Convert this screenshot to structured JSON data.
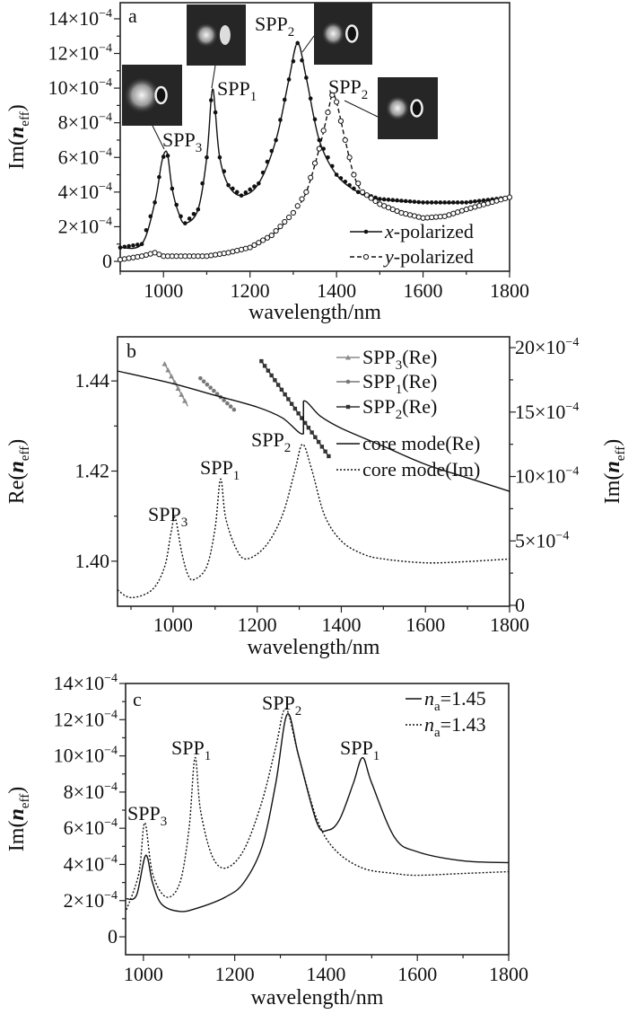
{
  "chart_data": [
    {
      "panel_label": "a",
      "type": "line",
      "xlabel": "wavelength/nm",
      "ylabel": {
        "pre": "Im(",
        "var": "n",
        "sub": "eff",
        "post": ")"
      },
      "xlim": [
        900,
        1800
      ],
      "ylim": [
        -0.57,
        14.93
      ],
      "y_multiplier": 0.0001,
      "x_ticks": [
        1000,
        1200,
        1400,
        1600,
        1800
      ],
      "x_tick_labels": [
        "1000",
        "1200",
        "1400",
        "1600",
        "1800"
      ],
      "y_ticks": [
        0,
        2,
        4,
        6,
        8,
        10,
        12,
        14
      ],
      "y_tick_labels": [
        {
          "base": "0"
        },
        {
          "base": "2×10",
          "exp": "−4"
        },
        {
          "base": "4×10",
          "exp": "−4"
        },
        {
          "base": "6×10",
          "exp": "−4"
        },
        {
          "base": "8×10",
          "exp": "−4"
        },
        {
          "base": "10×10",
          "exp": "−4"
        },
        {
          "base": "12×10",
          "exp": "−4"
        },
        {
          "base": "14×10",
          "exp": "−4"
        }
      ],
      "series": [
        {
          "label": {
            "it": "x",
            "txt": "-polarized"
          },
          "line": "solid",
          "marker": "filled-circle",
          "color": "#111111",
          "x": [
            900,
            950,
            980,
            995,
            1003,
            1010,
            1020,
            1035,
            1050,
            1080,
            1100,
            1110,
            1115,
            1120,
            1130,
            1150,
            1180,
            1220,
            1260,
            1290,
            1310,
            1330,
            1360,
            1400,
            1450,
            1500,
            1600,
            1700,
            1800
          ],
          "y": [
            0.8,
            1.0,
            3.4,
            5.6,
            6.3,
            6.1,
            4.2,
            2.8,
            2.2,
            3.0,
            6.0,
            9.3,
            9.9,
            8.6,
            6.0,
            4.4,
            3.8,
            4.5,
            7.0,
            10.5,
            12.6,
            10.6,
            7.0,
            5.0,
            4.0,
            3.6,
            3.4,
            3.4,
            3.7
          ]
        },
        {
          "label": {
            "it": "y",
            "txt": "-polarized"
          },
          "line": "dashed",
          "marker": "open-circle",
          "color": "#111111",
          "x": [
            900,
            950,
            980,
            1000,
            1050,
            1100,
            1150,
            1200,
            1250,
            1300,
            1330,
            1360,
            1380,
            1390,
            1400,
            1420,
            1440,
            1460,
            1500,
            1550,
            1600,
            1650,
            1700,
            1800
          ],
          "y": [
            0.1,
            0.3,
            0.5,
            0.3,
            0.3,
            0.3,
            0.5,
            0.8,
            1.5,
            2.8,
            4.0,
            6.5,
            8.6,
            9.6,
            9.2,
            7.0,
            5.0,
            4.0,
            3.3,
            2.8,
            2.5,
            2.6,
            3.0,
            3.7
          ]
        }
      ],
      "annotations": [
        {
          "text": "SPP",
          "sub": "3",
          "at": [
            1003,
            6.3
          ]
        },
        {
          "text": "SPP",
          "sub": "1",
          "at": [
            1115,
            9.9
          ]
        },
        {
          "text": "SPP",
          "sub": "2",
          "at": [
            1310,
            12.6
          ]
        },
        {
          "text": "SPP",
          "sub": "2",
          "at": [
            1390,
            9.6
          ]
        }
      ],
      "insets": [
        {
          "mode": "SPP3"
        },
        {
          "mode": "SPP1"
        },
        {
          "mode": "SPP2-x"
        },
        {
          "mode": "SPP2-y"
        }
      ],
      "legend_position": "bottom-right"
    },
    {
      "panel_label": "b",
      "type": "line",
      "xlabel": "wavelength/nm",
      "ylabel": {
        "pre": "Re(",
        "var": "n",
        "sub": "eff",
        "post": ")"
      },
      "ylabel_right": {
        "pre": "Im(",
        "var": "n",
        "sub": "eff",
        "post": ")"
      },
      "xlim": [
        868,
        1800
      ],
      "ylim": [
        1.39,
        1.4498
      ],
      "ylim_right": [
        -0.07,
        20.84
      ],
      "y_right_multiplier": 0.0001,
      "x_ticks": [
        1000,
        1200,
        1400,
        1600,
        1800
      ],
      "x_tick_labels": [
        "1000",
        "1200",
        "1400",
        "1600",
        "1800"
      ],
      "y_ticks": [
        1.4,
        1.42,
        1.44
      ],
      "y_tick_labels": [
        {
          "base": "1.40"
        },
        {
          "base": "1.42"
        },
        {
          "base": "1.44"
        }
      ],
      "y_ticks_right": [
        0,
        5,
        10,
        15,
        20
      ],
      "y_tick_labels_right": [
        {
          "base": "0"
        },
        {
          "base": "5×10",
          "exp": "−4"
        },
        {
          "base": "10×10",
          "exp": "−4"
        },
        {
          "base": "15×10",
          "exp": "−4"
        },
        {
          "base": "20×10",
          "exp": "−4"
        }
      ],
      "series": [
        {
          "label": {
            "txt": "SPP",
            "sub": "3",
            "post": "(Re)"
          },
          "axis": "left",
          "line": "solid",
          "marker": "triangle",
          "color": "#8a8a8a",
          "x": [
            980,
            1035
          ],
          "y": [
            1.4438,
            1.4344
          ]
        },
        {
          "label": {
            "txt": "SPP",
            "sub": "1",
            "post": "(Re)"
          },
          "axis": "left",
          "line": "none",
          "marker": "filled-circle",
          "color": "#777777",
          "x": [
            1065,
            1150
          ],
          "y": [
            1.4406,
            1.4332
          ]
        },
        {
          "label": {
            "txt": "SPP",
            "sub": "2",
            "post": "(Re)"
          },
          "axis": "left",
          "line": "solid",
          "marker": "square",
          "color": "#333333",
          "x": [
            1210,
            1370
          ],
          "y": [
            1.4444,
            1.4233
          ]
        },
        {
          "label": {
            "txt": "core mode(Re)"
          },
          "axis": "left",
          "line": "solid",
          "marker": "none",
          "color": "#111111",
          "x": [
            868,
            1000,
            1100,
            1200,
            1260,
            1310,
            1310,
            1350,
            1400,
            1500,
            1600,
            1700,
            1800
          ],
          "y": [
            1.4422,
            1.4394,
            1.4368,
            1.4342,
            1.4318,
            1.4283,
            1.4355,
            1.4322,
            1.4295,
            1.4255,
            1.4215,
            1.4185,
            1.4155
          ]
        },
        {
          "label": {
            "txt": "core mode(Im)"
          },
          "axis": "right",
          "line": "dotted",
          "marker": "none",
          "color": "#111111",
          "x": [
            868,
            900,
            950,
            980,
            995,
            1005,
            1020,
            1035,
            1050,
            1080,
            1100,
            1113,
            1125,
            1150,
            1175,
            1220,
            1260,
            1290,
            1308,
            1330,
            1360,
            1400,
            1450,
            1500,
            1600,
            1700,
            1800
          ],
          "y": [
            1.2,
            0.6,
            1.2,
            3.0,
            5.6,
            6.8,
            4.2,
            2.4,
            2.0,
            3.0,
            6.0,
            9.8,
            6.8,
            4.4,
            3.6,
            4.6,
            7.0,
            10.5,
            12.5,
            10.5,
            7.0,
            5.0,
            4.0,
            3.6,
            3.3,
            3.4,
            3.6
          ]
        }
      ],
      "annotations": [
        {
          "text": "SPP",
          "sub": "3",
          "at": [
            1005,
            6.8
          ]
        },
        {
          "text": "SPP",
          "sub": "1",
          "at": [
            1113,
            9.8
          ]
        },
        {
          "text": "SPP",
          "sub": "2",
          "at": [
            1308,
            12.5
          ]
        }
      ],
      "legend_position": "top-right"
    },
    {
      "panel_label": "c",
      "type": "line",
      "xlabel": "wavelength/nm",
      "ylabel": {
        "pre": "Im(",
        "var": "n",
        "sub": "eff",
        "post": ")"
      },
      "xlim": [
        961,
        1800
      ],
      "ylim": [
        -0.99,
        14
      ],
      "y_multiplier": 0.0001,
      "x_ticks": [
        1000,
        1200,
        1400,
        1600,
        1800
      ],
      "x_tick_labels": [
        "1000",
        "1200",
        "1400",
        "1600",
        "1800"
      ],
      "y_ticks": [
        0,
        2,
        4,
        6,
        8,
        10,
        12,
        14
      ],
      "y_tick_labels": [
        {
          "base": "0"
        },
        {
          "base": "2×10",
          "exp": "−4"
        },
        {
          "base": "4×10",
          "exp": "−4"
        },
        {
          "base": "6×10",
          "exp": "−4"
        },
        {
          "base": "8×10",
          "exp": "−4"
        },
        {
          "base": "10×10",
          "exp": "−4"
        },
        {
          "base": "12×10",
          "exp": "−4"
        },
        {
          "base": "14×10",
          "exp": "−4"
        }
      ],
      "series": [
        {
          "label": {
            "it": "n",
            "sub": "a",
            "txt": "=1.45"
          },
          "line": "solid",
          "marker": "none",
          "color": "#111111",
          "x": [
            963,
            985,
            1005,
            1020,
            1040,
            1080,
            1120,
            1180,
            1220,
            1260,
            1290,
            1315,
            1340,
            1380,
            1405,
            1430,
            1460,
            1480,
            1500,
            1550,
            1600,
            1700,
            1800
          ],
          "y": [
            2.1,
            2.3,
            4.5,
            3.0,
            1.8,
            1.4,
            1.6,
            2.2,
            3.0,
            5.0,
            8.5,
            12.3,
            10.0,
            6.3,
            5.9,
            6.5,
            8.5,
            9.9,
            8.5,
            5.5,
            4.7,
            4.2,
            4.1
          ]
        },
        {
          "label": {
            "it": "n",
            "sub": "a",
            "txt": "=1.43"
          },
          "line": "dotted",
          "marker": "none",
          "color": "#111111",
          "x": [
            963,
            990,
            1003,
            1020,
            1050,
            1080,
            1100,
            1113,
            1125,
            1150,
            1180,
            1220,
            1260,
            1290,
            1312,
            1340,
            1380,
            1420,
            1480,
            1550,
            1600,
            1700,
            1800
          ],
          "y": [
            1.5,
            3.5,
            6.3,
            3.5,
            2.2,
            3.0,
            6.0,
            9.9,
            7.0,
            4.5,
            3.8,
            4.8,
            7.5,
            10.5,
            12.6,
            10.0,
            6.5,
            4.8,
            3.8,
            3.5,
            3.4,
            3.5,
            3.6
          ]
        }
      ],
      "annotations": [
        {
          "text": "SPP",
          "sub": "3",
          "at": [
            1003,
            6.3
          ]
        },
        {
          "text": "SPP",
          "sub": "1",
          "at": [
            1113,
            9.9
          ]
        },
        {
          "text": "SPP",
          "sub": "2",
          "at": [
            1313,
            12.6
          ]
        },
        {
          "text": "SPP",
          "sub": "1",
          "at": [
            1480,
            9.9
          ]
        }
      ],
      "legend_position": "top-right"
    }
  ]
}
